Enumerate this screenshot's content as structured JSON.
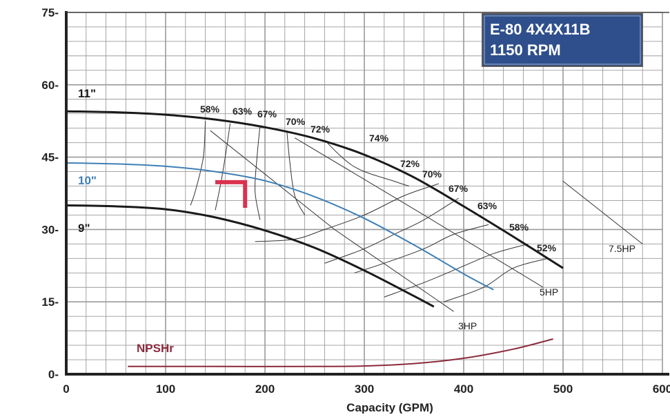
{
  "chart_data": {
    "type": "line",
    "title_lines": [
      "E-80 4X4X11B",
      "1150 RPM"
    ],
    "xlabel": "Capacity (GPM)",
    "ylabel": "",
    "xlim": [
      0,
      600
    ],
    "ylim": [
      0,
      75
    ],
    "xticks": [
      "0",
      "100",
      "200",
      "300",
      "400",
      "500",
      "600"
    ],
    "yticks": [
      "0-",
      "15-",
      "30-",
      "45-",
      "60-",
      "75-"
    ],
    "grid": true,
    "colors": {
      "impeller": "#1a1a1a",
      "impeller_10": "#3e7fb5",
      "npshr": "#8b2a3c",
      "marker": "#d9324f",
      "title_box": "#2f4f8c",
      "grid": "#9a9a9a"
    },
    "impeller_curves": [
      {
        "name": "11\"",
        "x": [
          0,
          50,
          100,
          150,
          200,
          250,
          300,
          350,
          400,
          450,
          500
        ],
        "y": [
          54.5,
          54.3,
          53.8,
          52.8,
          51.2,
          48.9,
          45.5,
          40.8,
          34.8,
          28.5,
          22
        ]
      },
      {
        "name": "10\"",
        "x": [
          0,
          50,
          100,
          150,
          200,
          250,
          300,
          350,
          400,
          430
        ],
        "y": [
          43.8,
          43.6,
          43.1,
          42,
          40.1,
          36.8,
          32.3,
          26.8,
          20.8,
          17.5
        ]
      },
      {
        "name": "9\"",
        "x": [
          0,
          50,
          100,
          150,
          200,
          250,
          300,
          350,
          370
        ],
        "y": [
          35,
          34.8,
          34.2,
          32.5,
          29.8,
          26.2,
          21.5,
          16.2,
          14
        ]
      }
    ],
    "npshr": {
      "name": "NPSHr",
      "x": [
        62,
        150,
        250,
        300,
        350,
        400,
        450,
        490
      ],
      "y": [
        1.6,
        1.6,
        1.6,
        1.7,
        2.2,
        3.3,
        5.2,
        7.3
      ]
    },
    "efficiency_labels": [
      "58%",
      "63%",
      "67%",
      "70%",
      "72%",
      "74%",
      "72%",
      "70%",
      "67%",
      "63%",
      "58%",
      "52%"
    ],
    "hp_labels": [
      "3HP",
      "5HP",
      "7.5HP"
    ]
  }
}
